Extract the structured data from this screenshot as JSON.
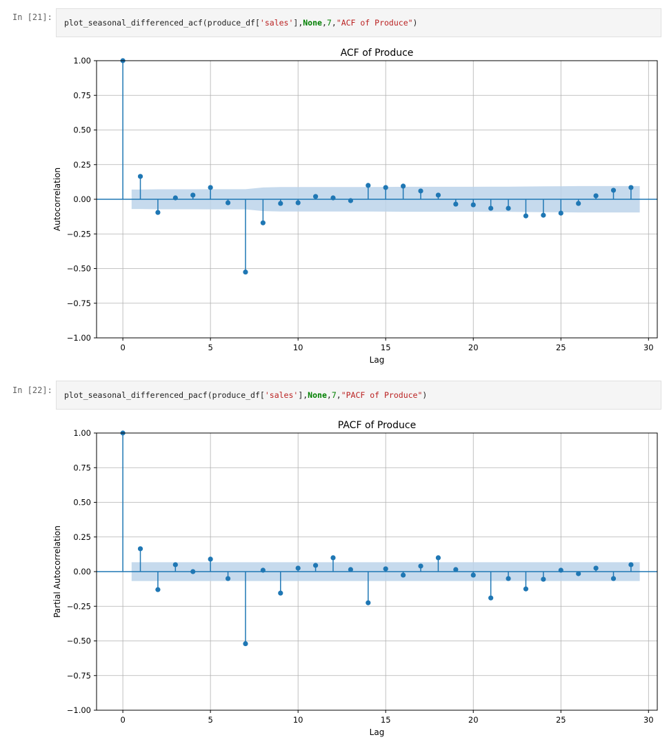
{
  "cells": [
    {
      "prompt": "In [21]:",
      "code": {
        "func": "plot_seasonal_differenced_acf",
        "open": "(",
        "var": "produce_df",
        "b_open": "[",
        "arg_str": "'sales'",
        "b_close": "],",
        "kw": "None",
        "comma1": ",",
        "num": "7",
        "comma2": ",",
        "title_str": "\"ACF of Produce\"",
        "close": ")"
      }
    },
    {
      "prompt": "In [22]:",
      "code": {
        "func": "plot_seasonal_differenced_pacf",
        "open": "(",
        "var": "produce_df",
        "b_open": "[",
        "arg_str": "'sales'",
        "b_close": "],",
        "kw": "None",
        "comma1": ",",
        "num": "7",
        "comma2": ",",
        "title_str": "\"PACF of Produce\"",
        "close": ")"
      }
    }
  ],
  "colors": {
    "series": "#1f77b4",
    "band": "#bcd4ea",
    "grid": "#b0b0b0",
    "axis": "#000000"
  },
  "chart_data": [
    {
      "type": "scatter",
      "style": "stem",
      "title": "ACF of Produce",
      "xlabel": "Lag",
      "ylabel": "Autocorrelation",
      "xlim": [
        -1.5,
        30.5
      ],
      "ylim": [
        -1.0,
        1.0
      ],
      "xticks": [
        0,
        5,
        10,
        15,
        20,
        25,
        30
      ],
      "yticks": [
        1.0,
        0.75,
        0.5,
        0.25,
        0.0,
        -0.25,
        -0.5,
        -0.75,
        -1.0
      ],
      "ytick_labels": [
        "1.00",
        "0.75",
        "0.50",
        "0.25",
        "0.00",
        "−0.25",
        "−0.50",
        "−0.75",
        "−1.00"
      ],
      "grid": true,
      "x": [
        0,
        1,
        2,
        3,
        4,
        5,
        6,
        7,
        8,
        9,
        10,
        11,
        12,
        13,
        14,
        15,
        16,
        17,
        18,
        19,
        20,
        21,
        22,
        23,
        24,
        25,
        26,
        27,
        28,
        29
      ],
      "values": [
        1.0,
        0.165,
        -0.095,
        0.01,
        0.03,
        0.085,
        -0.025,
        -0.525,
        -0.17,
        -0.03,
        -0.025,
        0.02,
        0.01,
        -0.01,
        0.1,
        0.085,
        0.095,
        0.06,
        0.03,
        -0.035,
        -0.04,
        -0.065,
        -0.065,
        -0.12,
        -0.115,
        -0.1,
        -0.03,
        0.025,
        0.065,
        0.085
      ],
      "conf_band": {
        "x": [
          0.5,
          1,
          2,
          3,
          4,
          5,
          6,
          7,
          8,
          9,
          10,
          11,
          12,
          13,
          14,
          15,
          16,
          17,
          18,
          19,
          20,
          21,
          22,
          23,
          24,
          25,
          26,
          27,
          28,
          29,
          29.5
        ],
        "upper": [
          0.07,
          0.07,
          0.072,
          0.072,
          0.072,
          0.073,
          0.073,
          0.073,
          0.085,
          0.088,
          0.088,
          0.088,
          0.088,
          0.088,
          0.088,
          0.089,
          0.09,
          0.09,
          0.09,
          0.09,
          0.09,
          0.091,
          0.091,
          0.092,
          0.093,
          0.094,
          0.095,
          0.095,
          0.095,
          0.095,
          0.095
        ]
      }
    },
    {
      "type": "scatter",
      "style": "stem",
      "title": "PACF of Produce",
      "xlabel": "Lag",
      "ylabel": "Partial Autocorrelation",
      "xlim": [
        -1.5,
        30.5
      ],
      "ylim": [
        -1.0,
        1.0
      ],
      "xticks": [
        0,
        5,
        10,
        15,
        20,
        25,
        30
      ],
      "yticks": [
        1.0,
        0.75,
        0.5,
        0.25,
        0.0,
        -0.25,
        -0.5,
        -0.75,
        -1.0
      ],
      "ytick_labels": [
        "1.00",
        "0.75",
        "0.50",
        "0.25",
        "0.00",
        "−0.25",
        "−0.50",
        "−0.75",
        "−1.00"
      ],
      "grid": true,
      "x": [
        0,
        1,
        2,
        3,
        4,
        5,
        6,
        7,
        8,
        9,
        10,
        11,
        12,
        13,
        14,
        15,
        16,
        17,
        18,
        19,
        20,
        21,
        22,
        23,
        24,
        25,
        26,
        27,
        28,
        29
      ],
      "values": [
        1.0,
        0.165,
        -0.13,
        0.05,
        0.0,
        0.09,
        -0.05,
        -0.52,
        0.01,
        -0.155,
        0.025,
        0.045,
        0.1,
        0.015,
        -0.225,
        0.02,
        -0.025,
        0.04,
        0.1,
        0.015,
        -0.025,
        -0.19,
        -0.05,
        -0.125,
        -0.055,
        0.01,
        -0.015,
        0.025,
        -0.05,
        0.05
      ],
      "conf_band": {
        "x": [
          0.5,
          29.5
        ],
        "upper": [
          0.068,
          0.068
        ]
      }
    }
  ]
}
